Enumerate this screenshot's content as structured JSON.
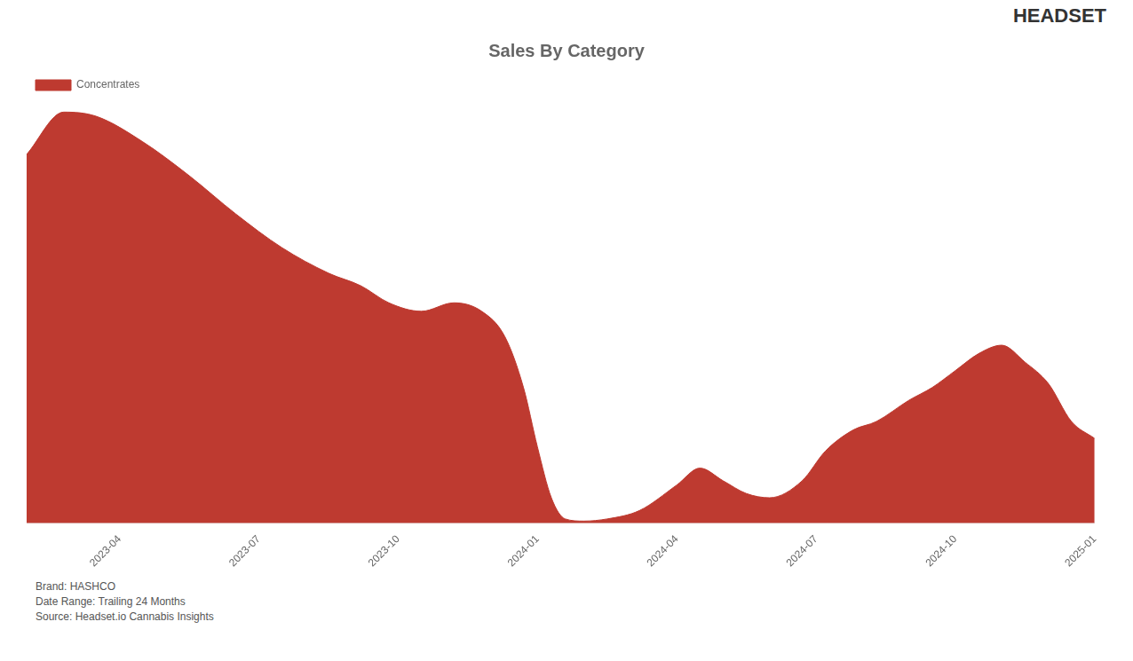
{
  "chart_data": {
    "type": "area",
    "title": "Sales By Category",
    "x": [
      0,
      0.8,
      1.5,
      2.5,
      3.5,
      4.5,
      5.5,
      6.5,
      7.2,
      7.8,
      8.5,
      9.2,
      9.8,
      10.3,
      10.7,
      11.0,
      11.3,
      11.6,
      12.0,
      12.5,
      13.2,
      14.0,
      14.5,
      15.0,
      15.5,
      16.0,
      16.7,
      17.2,
      17.8,
      18.3,
      19.0,
      19.5,
      20.0,
      20.5,
      21.0,
      21.5,
      22.0,
      22.5,
      23.0
    ],
    "series": [
      {
        "name": "Concentrates",
        "color": "#BE3A30",
        "values": [
          0.87,
          0.97,
          0.96,
          0.9,
          0.82,
          0.73,
          0.65,
          0.59,
          0.56,
          0.52,
          0.5,
          0.52,
          0.5,
          0.44,
          0.32,
          0.18,
          0.06,
          0.01,
          0.005,
          0.01,
          0.03,
          0.09,
          0.13,
          0.1,
          0.07,
          0.06,
          0.1,
          0.17,
          0.22,
          0.24,
          0.29,
          0.32,
          0.36,
          0.4,
          0.42,
          0.38,
          0.33,
          0.24,
          0.2
        ]
      }
    ],
    "xlim": [
      0,
      23
    ],
    "xticks": [
      {
        "value": 2,
        "label": "2023-04"
      },
      {
        "value": 5,
        "label": "2023-07"
      },
      {
        "value": 8,
        "label": "2023-10"
      },
      {
        "value": 11,
        "label": "2024-01"
      },
      {
        "value": 14,
        "label": "2024-04"
      },
      {
        "value": 17,
        "label": "2024-07"
      },
      {
        "value": 20,
        "label": "2024-10"
      },
      {
        "value": 23,
        "label": "2025-01"
      }
    ],
    "ylim": [
      0,
      1
    ],
    "tick_labels": "x",
    "grid": false,
    "legend": "upper left",
    "annotations": [
      "HEADSET",
      "Brand: HASHCO",
      "Date Range: Trailing 24 Months",
      "Source: Headset.io Cannabis Insights"
    ]
  }
}
